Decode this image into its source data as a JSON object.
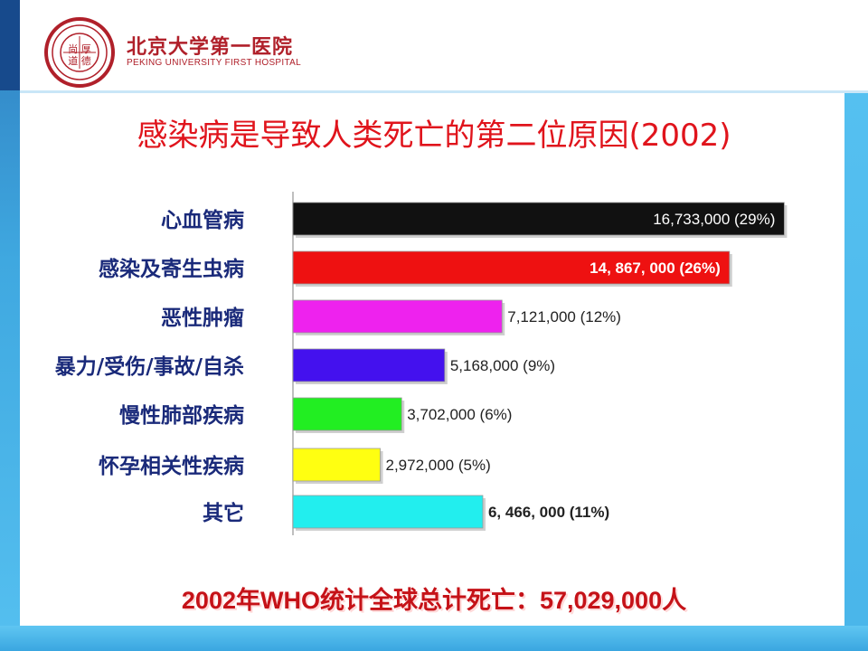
{
  "header": {
    "logo_cn": "北京大学第一医院",
    "logo_en": "PEKING UNIVERSITY FIRST HOSPITAL",
    "seal_text": "尚 厚 道 德"
  },
  "title": "感染病是导致人类死亡的第二位原因(2002)",
  "chart_data": {
    "type": "bar",
    "orientation": "horizontal",
    "categories": [
      "心血管病",
      "感染及寄生虫病",
      "恶性肿瘤",
      "暴力/受伤/事故/自杀",
      "慢性肺部疾病",
      "怀孕相关性疾病",
      "其它"
    ],
    "values": [
      16733000,
      14867000,
      7121000,
      5168000,
      3702000,
      2972000,
      6466000
    ],
    "data_labels": [
      "16,733,000 (29%)",
      "14, 867, 000 (26%)",
      "7,121,000 (12%)",
      "5,168,000 (9%)",
      "3,702,000 (6%)",
      "2,972,000 (5%)",
      "6, 466, 000 (11%)"
    ],
    "percentages": [
      29,
      26,
      12,
      9,
      6,
      5,
      11
    ],
    "colors": [
      "#111111",
      "#ee1111",
      "#ee22ee",
      "#4411ee",
      "#22ee22",
      "#ffff11",
      "#22eeee"
    ],
    "label_color": "#1a2a7a",
    "xlim": [
      0,
      18600000
    ],
    "grid": false,
    "legend": "none"
  },
  "footer": "2002年WHO统计全球总计死亡：57,029,000人"
}
